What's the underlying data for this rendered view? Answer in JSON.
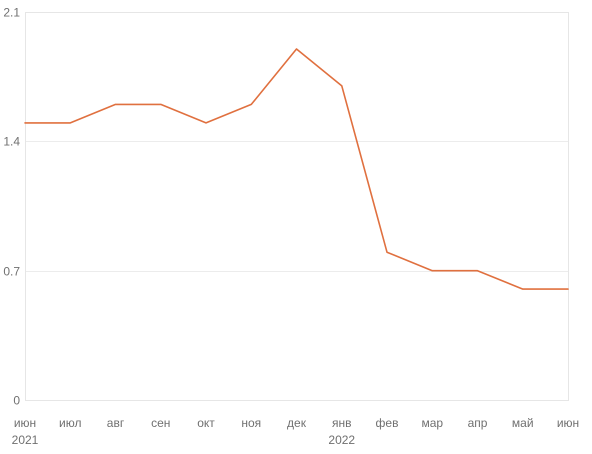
{
  "chart_data": {
    "type": "line",
    "categories": [
      "июн",
      "июл",
      "авг",
      "сен",
      "окт",
      "ноя",
      "дек",
      "янв",
      "фев",
      "мар",
      "апр",
      "май",
      "июн"
    ],
    "year_labels": [
      {
        "index": 0,
        "label": "2021"
      },
      {
        "index": 7,
        "label": "2022"
      }
    ],
    "series": [
      {
        "values": [
          1.5,
          1.5,
          1.6,
          1.6,
          1.5,
          1.6,
          1.9,
          1.7,
          0.8,
          0.7,
          0.7,
          0.6,
          0.6
        ]
      }
    ],
    "y_ticks": [
      "0",
      "0.7",
      "1.4",
      "2.1"
    ],
    "ylim": [
      0,
      2.1
    ],
    "grid": true,
    "colors": {
      "line": "#e0703f",
      "grid": "#ececec",
      "text": "#707070"
    }
  }
}
